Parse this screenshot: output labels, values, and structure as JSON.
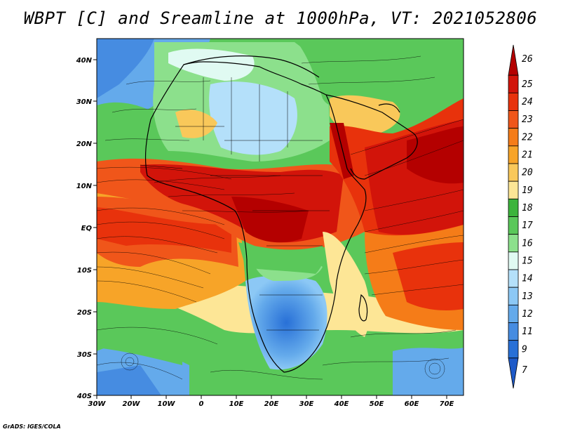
{
  "title": "WBPT [C] and Sreamline at 1000hPa, VT: 2021052806",
  "credit": "GrADS: IGES/COLA",
  "map": {
    "lon_labels": [
      "30W",
      "20W",
      "10W",
      "0",
      "10E",
      "20E",
      "30E",
      "40E",
      "50E",
      "60E",
      "70E"
    ],
    "lat_labels": [
      "40N",
      "30N",
      "20N",
      "10N",
      "EQ",
      "10S",
      "20S",
      "30S",
      "40S"
    ]
  },
  "colorbar": {
    "levels": [
      "26",
      "25",
      "24",
      "23",
      "22",
      "21",
      "20",
      "19",
      "18",
      "17",
      "16",
      "15",
      "14",
      "13",
      "12",
      "11",
      "9",
      "7"
    ],
    "colors": [
      "#b40000",
      "#d2140a",
      "#e8320c",
      "#f0561a",
      "#f57c18",
      "#f7a428",
      "#f9c85a",
      "#fde696",
      "#3cb43c",
      "#5ac85a",
      "#8ce08c",
      "#e0faf2",
      "#b4e0fa",
      "#8cc8f5",
      "#64aaeb",
      "#468ce1",
      "#2870d7",
      "#1e5ac8"
    ]
  }
}
